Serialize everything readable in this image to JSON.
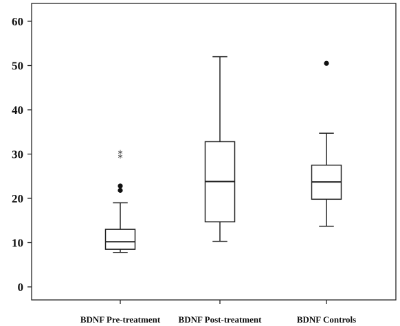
{
  "chart_data": {
    "type": "boxplot",
    "title": "",
    "xlabel": "",
    "ylabel": "",
    "ylim": [
      -3,
      63
    ],
    "yticks": [
      0,
      10,
      20,
      30,
      40,
      50,
      60
    ],
    "grid": false,
    "categories": [
      "BDNF Pre-treatment",
      "BDNF Post-treatment",
      "BDNF Controls"
    ],
    "series": [
      {
        "min": 7.8,
        "q1": 8.5,
        "median": 10.2,
        "q3": 13.0,
        "max": 19.0,
        "outliers": [
          21.8,
          22.8
        ],
        "extremes": [
          29.3,
          30.2
        ]
      },
      {
        "min": 10.3,
        "q1": 14.7,
        "median": 23.8,
        "q3": 32.8,
        "max": 52.0,
        "outliers": [],
        "extremes": []
      },
      {
        "min": 13.7,
        "q1": 19.8,
        "median": 23.7,
        "q3": 27.5,
        "max": 34.7,
        "outliers": [
          50.5
        ],
        "extremes": []
      }
    ]
  }
}
